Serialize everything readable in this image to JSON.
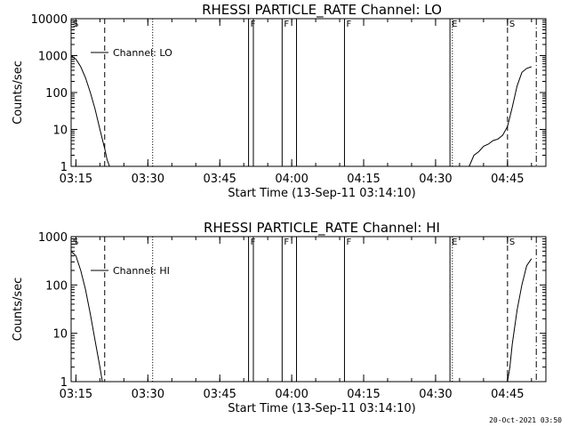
{
  "footer_timestamp": "20-Oct-2021 03:50",
  "chart_data": [
    {
      "type": "line",
      "title": "RHESSI PARTICLE_RATE Channel: LO",
      "xlabel": "Start Time (13-Sep-11 03:14:10)",
      "ylabel": "Counts/sec",
      "y_scale": "log",
      "ylim": [
        1,
        10000
      ],
      "yticks": [
        "1",
        "10",
        "100",
        "1000",
        "10000"
      ],
      "xlim": [
        "03:14",
        "04:53"
      ],
      "xticks": [
        "03:15",
        "03:30",
        "03:45",
        "04:00",
        "04:15",
        "04:30",
        "04:45"
      ],
      "legend": {
        "position": "top-left",
        "entries": [
          "Channel: LO"
        ]
      },
      "series": [
        {
          "name": "Channel: LO",
          "segments": [
            [
              [
                "03:14",
                1000
              ],
              [
                "03:15",
                800
              ],
              [
                "03:16",
                500
              ],
              [
                "03:17",
                250
              ],
              [
                "03:18",
                100
              ],
              [
                "03:19",
                35
              ],
              [
                "03:20",
                10
              ],
              [
                "03:21",
                3
              ],
              [
                "03:21:30",
                1.5
              ],
              [
                "03:22",
                1
              ]
            ],
            [
              [
                "04:37",
                1
              ],
              [
                "04:38",
                2
              ],
              [
                "04:39",
                2.5
              ],
              [
                "04:40",
                3.5
              ],
              [
                "04:41",
                4
              ],
              [
                "04:42",
                5
              ],
              [
                "04:43",
                5.5
              ],
              [
                "04:44",
                7
              ],
              [
                "04:45",
                12
              ],
              [
                "04:46",
                40
              ],
              [
                "04:47",
                150
              ],
              [
                "04:48",
                350
              ],
              [
                "04:49",
                450
              ],
              [
                "04:50",
                500
              ]
            ]
          ]
        }
      ],
      "markers": [
        {
          "time": "03:14",
          "style": "dotted",
          "label": "S"
        },
        {
          "time": "03:21",
          "style": "dashed",
          "label": ""
        },
        {
          "time": "03:31",
          "style": "dotted",
          "label": ""
        },
        {
          "time": "03:51",
          "style": "solid",
          "label": "F"
        },
        {
          "time": "03:52",
          "style": "solid",
          "label": ""
        },
        {
          "time": "03:58",
          "style": "solid",
          "label": "F"
        },
        {
          "time": "04:01",
          "style": "solid",
          "label": ""
        },
        {
          "time": "04:11",
          "style": "solid",
          "label": "F"
        },
        {
          "time": "04:33",
          "style": "solid",
          "label": "E"
        },
        {
          "time": "04:33:30",
          "style": "dotted",
          "label": ""
        },
        {
          "time": "04:45",
          "style": "dashed",
          "label": "S"
        },
        {
          "time": "04:51",
          "style": "dashdot",
          "label": ""
        }
      ]
    },
    {
      "type": "line",
      "title": "RHESSI PARTICLE_RATE Channel: HI",
      "xlabel": "Start Time (13-Sep-11 03:14:10)",
      "ylabel": "Counts/sec",
      "y_scale": "log",
      "ylim": [
        1,
        1000
      ],
      "yticks": [
        "1",
        "10",
        "100",
        "1000"
      ],
      "xlim": [
        "03:14",
        "04:53"
      ],
      "xticks": [
        "03:15",
        "03:30",
        "03:45",
        "04:00",
        "04:15",
        "04:30",
        "04:45"
      ],
      "legend": {
        "position": "top-left",
        "entries": [
          "Channel: HI"
        ]
      },
      "series": [
        {
          "name": "Channel: HI",
          "segments": [
            [
              [
                "03:14",
                500
              ],
              [
                "03:15",
                400
              ],
              [
                "03:16",
                200
              ],
              [
                "03:17",
                80
              ],
              [
                "03:18",
                25
              ],
              [
                "03:19",
                7
              ],
              [
                "03:20",
                2
              ],
              [
                "03:20:30",
                1
              ]
            ],
            [
              [
                "04:45",
                1
              ],
              [
                "04:45:30",
                2
              ],
              [
                "04:46",
                6
              ],
              [
                "04:47",
                30
              ],
              [
                "04:48",
                100
              ],
              [
                "04:49",
                250
              ],
              [
                "04:50",
                350
              ]
            ]
          ]
        }
      ],
      "markers": [
        {
          "time": "03:14",
          "style": "dotted",
          "label": "S"
        },
        {
          "time": "03:21",
          "style": "dashed",
          "label": ""
        },
        {
          "time": "03:31",
          "style": "dotted",
          "label": ""
        },
        {
          "time": "03:51",
          "style": "solid",
          "label": "F"
        },
        {
          "time": "03:52",
          "style": "solid",
          "label": ""
        },
        {
          "time": "03:58",
          "style": "solid",
          "label": "F"
        },
        {
          "time": "04:01",
          "style": "solid",
          "label": ""
        },
        {
          "time": "04:11",
          "style": "solid",
          "label": "F"
        },
        {
          "time": "04:33",
          "style": "solid",
          "label": "E"
        },
        {
          "time": "04:33:30",
          "style": "dotted",
          "label": ""
        },
        {
          "time": "04:45",
          "style": "dashed",
          "label": "S"
        },
        {
          "time": "04:51",
          "style": "dashdot",
          "label": ""
        }
      ]
    }
  ]
}
